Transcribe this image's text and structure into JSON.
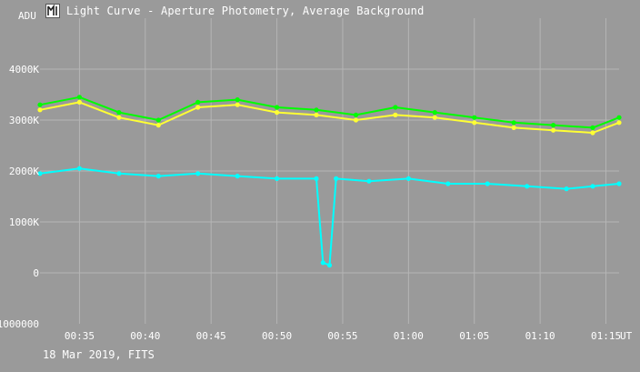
{
  "window": {
    "title": "Light Curve - Aperture Photometry, Average Background",
    "icon": "light-curve-app-icon"
  },
  "footer": {
    "text": "18 Mar 2019, FITS"
  },
  "colors": {
    "background": "#9a9a9a",
    "grid": "#b5b5b5",
    "text": "#ffffff",
    "series_1": "#00ff00",
    "series_2": "#ffff33",
    "series_3": "#00ffff"
  },
  "chart_data": {
    "type": "scatter",
    "title": "",
    "xlabel": "UT",
    "ylabel": "ADU",
    "xlim": [
      "00:32",
      "01:16"
    ],
    "ylim": [
      -1000000,
      5000000
    ],
    "x_ticks": [
      "00:35",
      "00:40",
      "00:45",
      "00:50",
      "00:55",
      "01:00",
      "01:05",
      "01:10",
      "01:15"
    ],
    "y_ticks": [
      {
        "value": 4000000,
        "label": "4000K"
      },
      {
        "value": 3000000,
        "label": "3000K"
      },
      {
        "value": 2000000,
        "label": "2000K"
      },
      {
        "value": 1000000,
        "label": "1000K"
      },
      {
        "value": 0,
        "label": "0"
      },
      {
        "value": -1000000,
        "label": "-1000000"
      }
    ],
    "grid": true,
    "legend": "none",
    "marker": "dots connected by lines",
    "series": [
      {
        "color": "#ffff33",
        "points": [
          [
            "00:32",
            3200000
          ],
          [
            "00:35",
            3350000
          ],
          [
            "00:38",
            3050000
          ],
          [
            "00:41",
            2900000
          ],
          [
            "00:44",
            3250000
          ],
          [
            "00:47",
            3300000
          ],
          [
            "00:50",
            3150000
          ],
          [
            "00:53",
            3100000
          ],
          [
            "00:56",
            3000000
          ],
          [
            "00:59",
            3100000
          ],
          [
            "01:02",
            3050000
          ],
          [
            "01:05",
            2950000
          ],
          [
            "01:08",
            2850000
          ],
          [
            "01:11",
            2800000
          ],
          [
            "01:14",
            2750000
          ],
          [
            "01:16",
            2950000
          ]
        ]
      },
      {
        "color": "#00ff00",
        "points": [
          [
            "00:32",
            3300000
          ],
          [
            "00:35",
            3450000
          ],
          [
            "00:38",
            3150000
          ],
          [
            "00:41",
            3000000
          ],
          [
            "00:44",
            3350000
          ],
          [
            "00:47",
            3400000
          ],
          [
            "00:50",
            3250000
          ],
          [
            "00:53",
            3200000
          ],
          [
            "00:56",
            3100000
          ],
          [
            "00:59",
            3250000
          ],
          [
            "01:02",
            3150000
          ],
          [
            "01:05",
            3050000
          ],
          [
            "01:08",
            2950000
          ],
          [
            "01:11",
            2900000
          ],
          [
            "01:14",
            2850000
          ],
          [
            "01:16",
            3050000
          ]
        ]
      },
      {
        "color": "#00ffff",
        "points": [
          [
            "00:32",
            1950000
          ],
          [
            "00:35",
            2050000
          ],
          [
            "00:38",
            1950000
          ],
          [
            "00:41",
            1900000
          ],
          [
            "00:44",
            1950000
          ],
          [
            "00:47",
            1900000
          ],
          [
            "00:50",
            1850000
          ],
          [
            "00:53",
            1850000
          ],
          [
            "00:53.5",
            200000
          ],
          [
            "00:54",
            150000
          ],
          [
            "00:54.5",
            1850000
          ],
          [
            "00:57",
            1800000
          ],
          [
            "01:00",
            1850000
          ],
          [
            "01:03",
            1750000
          ],
          [
            "01:06",
            1750000
          ],
          [
            "01:09",
            1700000
          ],
          [
            "01:12",
            1650000
          ],
          [
            "01:14",
            1700000
          ],
          [
            "01:16",
            1750000
          ]
        ]
      }
    ]
  }
}
